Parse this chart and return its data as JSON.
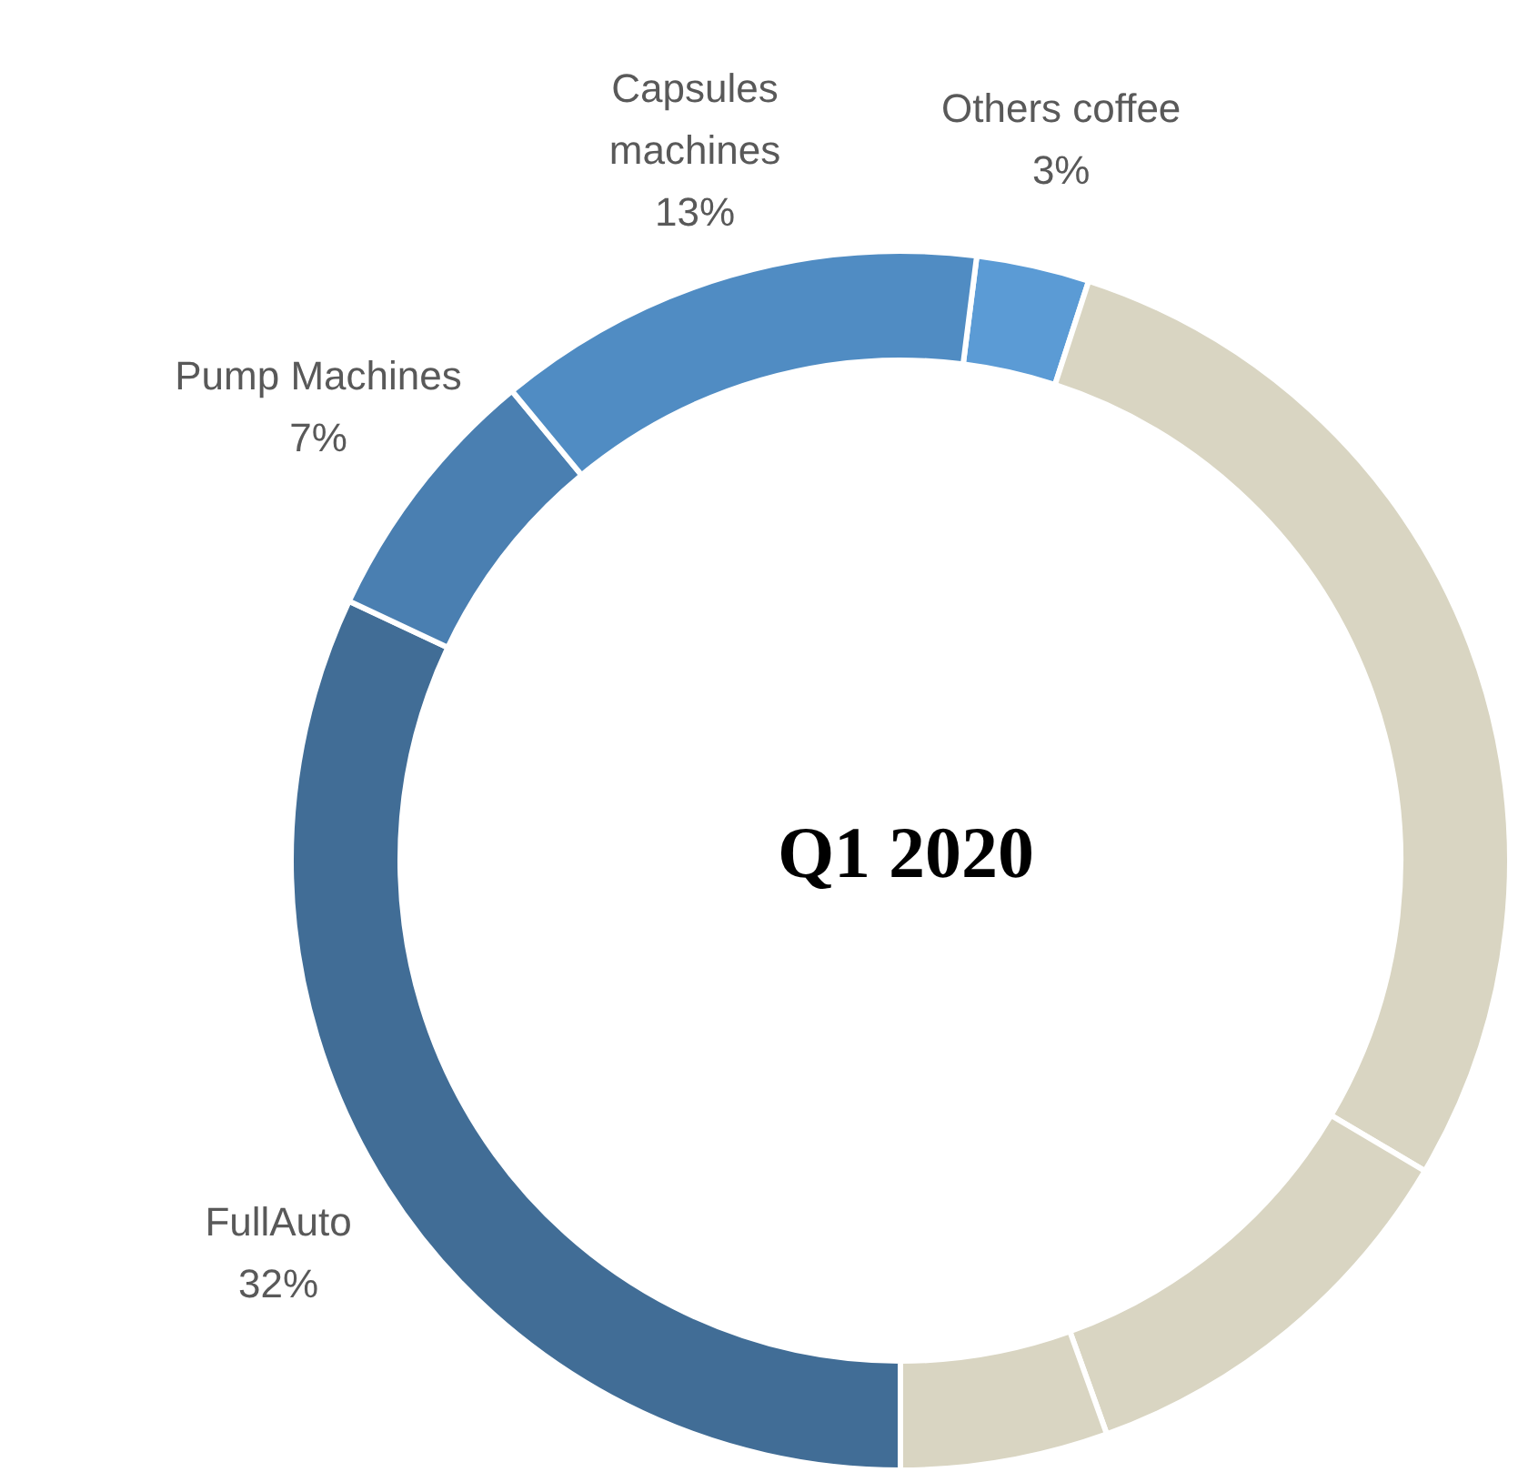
{
  "chart_data": {
    "type": "donut",
    "title": "Q1 2020",
    "categories": [
      "Others coffee",
      null,
      null,
      null,
      "FullAuto",
      "Pump Machines",
      "Capsules machines"
    ],
    "values": [
      3,
      28.5,
      11,
      5.5,
      32,
      7,
      13
    ],
    "value_labels": [
      "3%",
      null,
      null,
      null,
      "32%",
      "7%",
      "13%"
    ],
    "colors": [
      "#5b9bd5",
      "#d9d5c2",
      "#d9d5c2",
      "#d9d5c2",
      "#416d96",
      "#4a7fb1",
      "#508cc3"
    ]
  }
}
